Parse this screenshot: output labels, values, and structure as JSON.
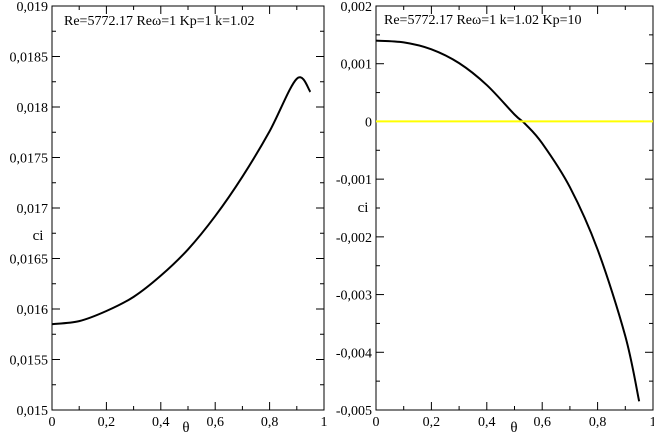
{
  "chart_data": [
    {
      "type": "line",
      "annotation": "Re=5772.17   Reω=1   Kp=1   k=1.02",
      "xlabel": "θ",
      "ylabel": "ci",
      "xlim": [
        0,
        1
      ],
      "ylim": [
        0.015,
        0.019
      ],
      "xticks": [
        0,
        0.2,
        0.4,
        0.6,
        0.8,
        1
      ],
      "xtick_labels": [
        "0",
        "0,2",
        "0,4",
        "0,6",
        "0,8",
        "1"
      ],
      "yticks": [
        0.015,
        0.0155,
        0.016,
        0.0165,
        0.017,
        0.0175,
        0.018,
        0.0185,
        0.019
      ],
      "ytick_labels": [
        "0,015",
        "0,0155",
        "0,016",
        "0,0165",
        "0,017",
        "0,0175",
        "0,018",
        "0,0185",
        "0,019"
      ],
      "grid": false,
      "series": [
        {
          "color": "#000000",
          "x": [
            0,
            0.1,
            0.2,
            0.3,
            0.4,
            0.5,
            0.6,
            0.7,
            0.8,
            0.9,
            0.95
          ],
          "y": [
            0.01585,
            0.01588,
            0.01598,
            0.01612,
            0.01633,
            0.01659,
            0.01692,
            0.01731,
            0.01776,
            0.01828,
            0.01815
          ]
        }
      ]
    },
    {
      "type": "line",
      "annotation": "Re=5772.17   Reω=1   k=1.02   Kp=10",
      "xlabel": "θ",
      "ylabel": "ci",
      "xlim": [
        0,
        1
      ],
      "ylim": [
        -0.005,
        0.002
      ],
      "xticks": [
        0,
        0.2,
        0.4,
        0.6,
        0.8,
        1
      ],
      "xtick_labels": [
        "0",
        "0,2",
        "0,4",
        "0,6",
        "0,8",
        "1"
      ],
      "yticks": [
        -0.005,
        -0.004,
        -0.003,
        -0.002,
        -0.001,
        0,
        0.001,
        0.002
      ],
      "ytick_labels": [
        "-0,005",
        "-0,004",
        "-0,003",
        "-0,002",
        "-0,001",
        "0",
        "0,001",
        "0,002"
      ],
      "grid": false,
      "series": [
        {
          "color": "#000000",
          "x": [
            0,
            0.1,
            0.2,
            0.3,
            0.4,
            0.5,
            0.54,
            0.6,
            0.7,
            0.8,
            0.9,
            0.95
          ],
          "y": [
            0.0014,
            0.00137,
            0.00125,
            0.00101,
            0.00063,
            0.00012,
            -5e-05,
            -0.00038,
            -0.00114,
            -0.00222,
            -0.00372,
            -0.00485
          ]
        },
        {
          "color": "#ffff00",
          "x": [
            0,
            1
          ],
          "y": [
            0,
            0
          ]
        }
      ]
    }
  ]
}
